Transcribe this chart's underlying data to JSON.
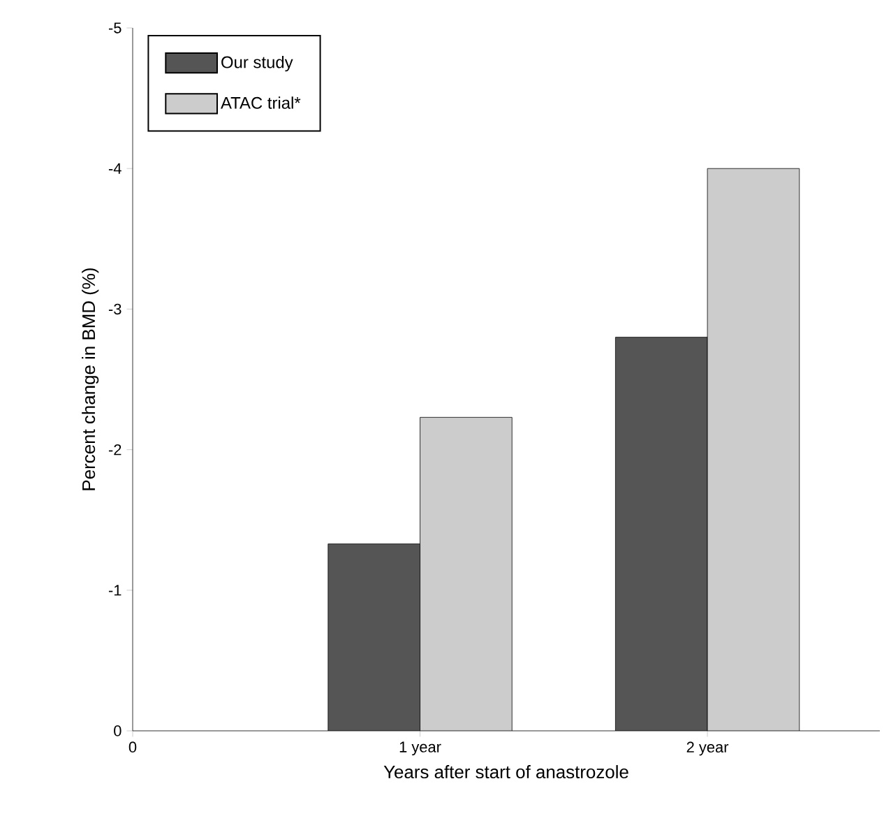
{
  "chart_data": {
    "type": "bar",
    "xlabel": "Years after start of anastrozole",
    "ylabel": "Percent change in BMD  (%)",
    "x": [
      1,
      2
    ],
    "xlim": [
      0,
      2.6
    ],
    "xticks": [
      0,
      {
        "value": 1,
        "label": "1 year"
      },
      {
        "value": 2,
        "label": "2 year"
      }
    ],
    "ylim": [
      0,
      -5
    ],
    "yticks": [
      0,
      -1,
      -2,
      -3,
      -4,
      -5
    ],
    "legend": "top left",
    "series": [
      {
        "name": "Our study",
        "color": "#555555",
        "values": [
          -1.33,
          -2.8
        ]
      },
      {
        "name": "ATAC trial*",
        "color": "#cccccc",
        "values": [
          -2.23,
          -4.0
        ]
      }
    ]
  }
}
